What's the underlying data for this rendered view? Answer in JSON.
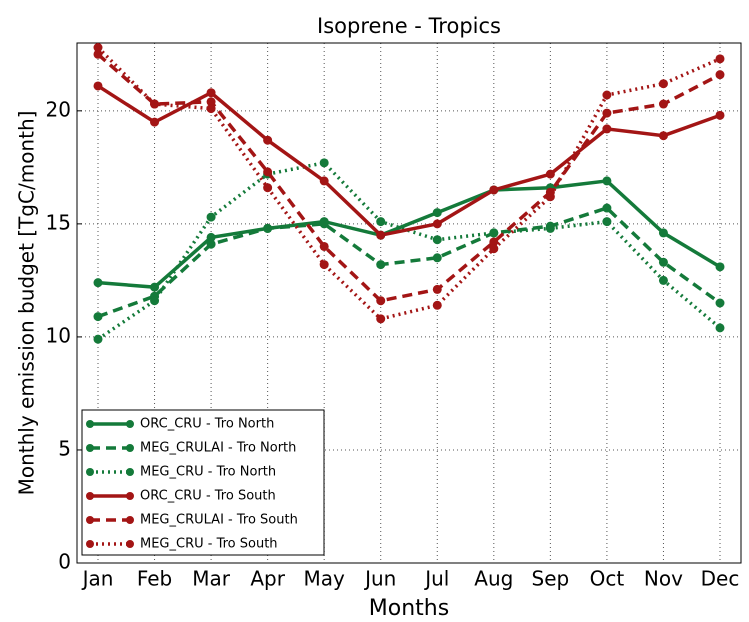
{
  "chart_data": {
    "type": "line",
    "title": "Isoprene - Tropics",
    "x_label": "Months",
    "y_label": "Monthly emission budget [TgC/month]",
    "categories": [
      "Jan",
      "Feb",
      "Mar",
      "Apr",
      "May",
      "Jun",
      "Jul",
      "Aug",
      "Sep",
      "Oct",
      "Nov",
      "Dec"
    ],
    "ylim": [
      0,
      23
    ],
    "yticks": [
      0,
      5,
      10,
      15,
      20
    ],
    "grid": true,
    "legend": "lower left",
    "series": [
      {
        "name": "ORC_CRU - Tro North",
        "color": "#147a3a",
        "linestyle": "solid",
        "values": [
          12.4,
          12.2,
          14.4,
          14.8,
          15.1,
          14.5,
          15.5,
          16.5,
          16.6,
          16.9,
          14.6,
          13.1
        ]
      },
      {
        "name": "MEG_CRULAI - Tro North",
        "color": "#147a3a",
        "linestyle": "dashed",
        "values": [
          10.9,
          11.8,
          14.1,
          14.8,
          15.0,
          13.2,
          13.5,
          14.6,
          14.9,
          15.7,
          13.3,
          11.5
        ]
      },
      {
        "name": "MEG_CRU - Tro North",
        "color": "#147a3a",
        "linestyle": "dotted",
        "values": [
          9.9,
          11.6,
          15.3,
          17.2,
          17.7,
          15.1,
          14.3,
          14.6,
          14.8,
          15.1,
          12.5,
          10.4
        ]
      },
      {
        "name": "ORC_CRU - Tro South",
        "color": "#a31515",
        "linestyle": "solid",
        "values": [
          21.1,
          19.5,
          20.8,
          18.7,
          16.9,
          14.5,
          15.0,
          16.5,
          17.2,
          19.2,
          18.9,
          19.8
        ]
      },
      {
        "name": "MEG_CRULAI - Tro South",
        "color": "#a31515",
        "linestyle": "dashed",
        "values": [
          22.5,
          20.3,
          20.4,
          17.3,
          14.0,
          11.6,
          12.1,
          14.2,
          16.4,
          19.9,
          20.3,
          21.6
        ]
      },
      {
        "name": "MEG_CRU - Tro South",
        "color": "#a31515",
        "linestyle": "dotted",
        "values": [
          22.8,
          20.3,
          20.1,
          16.6,
          13.2,
          10.8,
          11.4,
          13.9,
          16.2,
          20.7,
          21.2,
          22.3
        ]
      }
    ]
  }
}
